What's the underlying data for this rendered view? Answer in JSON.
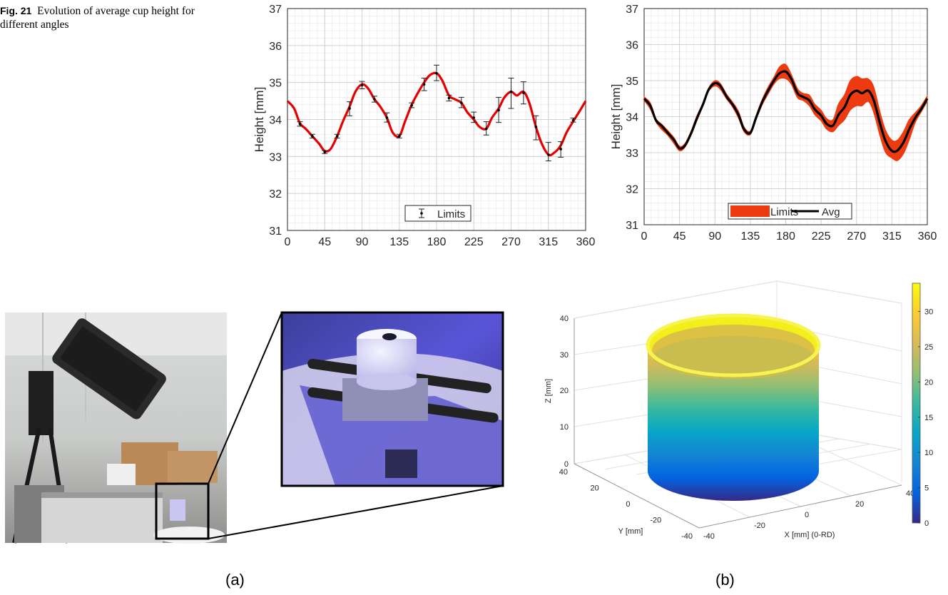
{
  "caption": {
    "fig_label": "Fig. 21",
    "text": "Evolution of average cup height for different angles"
  },
  "subfigure_labels": [
    "(a)",
    "(b)"
  ],
  "chart_data": [
    {
      "type": "line",
      "ylabel": "Height [mm]",
      "xlim": [
        0,
        360
      ],
      "ylim": [
        31,
        37
      ],
      "xticks": [
        0,
        45,
        90,
        135,
        180,
        225,
        270,
        315,
        360
      ],
      "yticks": [
        31,
        32,
        33,
        34,
        35,
        36,
        37
      ],
      "grid": true,
      "legend": {
        "position": "bottom-center",
        "entries": [
          "Limits"
        ]
      },
      "series": [
        {
          "name": "Limits",
          "color": "#e60000",
          "x": [
            0,
            8,
            15,
            22,
            30,
            38,
            45,
            52,
            60,
            67,
            75,
            82,
            90,
            97,
            105,
            112,
            120,
            127,
            135,
            142,
            150,
            157,
            165,
            172,
            180,
            187,
            195,
            202,
            210,
            217,
            225,
            232,
            240,
            247,
            255,
            262,
            270,
            277,
            285,
            292,
            300,
            307,
            315,
            322,
            330,
            337,
            345,
            352,
            360
          ],
          "y": [
            34.5,
            34.3,
            33.9,
            33.75,
            33.55,
            33.35,
            33.15,
            33.2,
            33.55,
            33.95,
            34.35,
            34.75,
            34.95,
            34.85,
            34.55,
            34.35,
            34.05,
            33.65,
            33.55,
            33.95,
            34.4,
            34.7,
            35.0,
            35.2,
            35.25,
            35.05,
            34.65,
            34.55,
            34.45,
            34.2,
            34.0,
            33.8,
            33.75,
            34.05,
            34.3,
            34.6,
            34.75,
            34.65,
            34.75,
            34.45,
            33.8,
            33.35,
            33.05,
            33.1,
            33.3,
            33.65,
            33.95,
            34.2,
            34.5
          ],
          "errorbars": [
            {
              "x": 15,
              "y": 33.88,
              "lo": 33.82,
              "hi": 33.94
            },
            {
              "x": 30,
              "y": 33.55,
              "lo": 33.5,
              "hi": 33.6
            },
            {
              "x": 45,
              "y": 33.12,
              "lo": 33.08,
              "hi": 33.16
            },
            {
              "x": 60,
              "y": 33.55,
              "lo": 33.5,
              "hi": 33.6
            },
            {
              "x": 75,
              "y": 34.3,
              "lo": 34.1,
              "hi": 34.48
            },
            {
              "x": 90,
              "y": 34.93,
              "lo": 34.83,
              "hi": 35.03
            },
            {
              "x": 105,
              "y": 34.55,
              "lo": 34.47,
              "hi": 34.63
            },
            {
              "x": 120,
              "y": 34.05,
              "lo": 33.93,
              "hi": 34.18
            },
            {
              "x": 135,
              "y": 33.55,
              "lo": 33.5,
              "hi": 33.6
            },
            {
              "x": 150,
              "y": 34.38,
              "lo": 34.32,
              "hi": 34.45
            },
            {
              "x": 165,
              "y": 34.95,
              "lo": 34.78,
              "hi": 35.12
            },
            {
              "x": 180,
              "y": 35.25,
              "lo": 35.05,
              "hi": 35.47
            },
            {
              "x": 195,
              "y": 34.58,
              "lo": 34.5,
              "hi": 34.66
            },
            {
              "x": 210,
              "y": 34.45,
              "lo": 34.32,
              "hi": 34.6
            },
            {
              "x": 225,
              "y": 34.05,
              "lo": 33.92,
              "hi": 34.2
            },
            {
              "x": 240,
              "y": 33.75,
              "lo": 33.58,
              "hi": 33.94
            },
            {
              "x": 255,
              "y": 34.25,
              "lo": 33.92,
              "hi": 34.6
            },
            {
              "x": 270,
              "y": 34.75,
              "lo": 34.3,
              "hi": 35.12
            },
            {
              "x": 285,
              "y": 34.72,
              "lo": 34.42,
              "hi": 35.02
            },
            {
              "x": 300,
              "y": 33.8,
              "lo": 33.45,
              "hi": 34.1
            },
            {
              "x": 315,
              "y": 33.05,
              "lo": 32.88,
              "hi": 33.38
            },
            {
              "x": 330,
              "y": 33.2,
              "lo": 32.98,
              "hi": 33.4
            },
            {
              "x": 345,
              "y": 33.98,
              "lo": 33.93,
              "hi": 34.04
            }
          ]
        }
      ]
    },
    {
      "type": "area",
      "ylabel": "Height [mm]",
      "xlim": [
        0,
        360
      ],
      "ylim": [
        31,
        37
      ],
      "xticks": [
        0,
        45,
        90,
        135,
        180,
        225,
        270,
        315,
        360
      ],
      "yticks": [
        31,
        32,
        33,
        34,
        35,
        36,
        37
      ],
      "grid": true,
      "legend": {
        "position": "bottom-center",
        "entries": [
          "Limits",
          "Avg"
        ]
      },
      "x": [
        0,
        8,
        15,
        22,
        30,
        38,
        45,
        52,
        60,
        67,
        75,
        82,
        90,
        97,
        105,
        112,
        120,
        127,
        135,
        142,
        150,
        157,
        165,
        172,
        180,
        187,
        195,
        202,
        210,
        217,
        225,
        232,
        240,
        247,
        255,
        262,
        270,
        277,
        285,
        292,
        300,
        307,
        315,
        322,
        330,
        337,
        345,
        352,
        360
      ],
      "series": [
        {
          "name": "Limits",
          "color": "#ee3a10",
          "lower": [
            34.45,
            34.2,
            33.85,
            33.65,
            33.48,
            33.25,
            33.05,
            33.15,
            33.5,
            33.88,
            34.3,
            34.7,
            34.85,
            34.75,
            34.48,
            34.28,
            33.95,
            33.58,
            33.5,
            33.9,
            34.32,
            34.6,
            34.9,
            35.05,
            35.05,
            34.9,
            34.52,
            34.45,
            34.3,
            34.05,
            33.88,
            33.65,
            33.58,
            33.75,
            33.92,
            34.18,
            34.3,
            34.3,
            34.42,
            34.1,
            33.45,
            33.0,
            32.85,
            32.78,
            32.98,
            33.35,
            33.85,
            34.12,
            34.42
          ],
          "upper": [
            34.55,
            34.38,
            33.95,
            33.8,
            33.62,
            33.42,
            33.18,
            33.26,
            33.62,
            34.02,
            34.4,
            34.8,
            35.0,
            34.92,
            34.62,
            34.42,
            34.15,
            33.72,
            33.6,
            34.02,
            34.48,
            34.8,
            35.1,
            35.38,
            35.45,
            35.18,
            34.78,
            34.65,
            34.6,
            34.35,
            34.18,
            33.95,
            33.92,
            34.35,
            34.62,
            35.0,
            35.12,
            35.05,
            35.05,
            34.82,
            34.12,
            33.62,
            33.35,
            33.35,
            33.6,
            33.92,
            34.12,
            34.3,
            34.58
          ]
        },
        {
          "name": "Avg",
          "color": "#000000",
          "values": [
            34.5,
            34.3,
            33.9,
            33.75,
            33.55,
            33.35,
            33.12,
            33.2,
            33.55,
            33.95,
            34.35,
            34.75,
            34.93,
            34.85,
            34.55,
            34.35,
            34.05,
            33.65,
            33.55,
            33.95,
            34.4,
            34.7,
            35.0,
            35.2,
            35.25,
            35.05,
            34.65,
            34.55,
            34.45,
            34.2,
            34.03,
            33.8,
            33.75,
            34.05,
            34.27,
            34.6,
            34.72,
            34.65,
            34.72,
            34.45,
            33.8,
            33.32,
            33.05,
            33.06,
            33.3,
            33.65,
            33.98,
            34.2,
            34.5
          ]
        }
      ]
    },
    {
      "type": "surface3d",
      "xlabel": "X [mm] (0-RD)",
      "ylabel": "Y [mm]",
      "zlabel": "Z [mm]",
      "xticks": [
        -40,
        -20,
        0,
        20,
        40
      ],
      "yticks": [
        -40,
        -20,
        0,
        20,
        40
      ],
      "zticks": [
        0,
        10,
        20,
        30,
        40
      ],
      "colorbar": {
        "ticks": [
          0,
          5,
          10,
          15,
          20,
          25,
          30
        ],
        "colormap": "parula",
        "range": [
          0,
          34
        ]
      },
      "grid": true
    }
  ],
  "photos": {
    "left_photo": "3d-scanner-setup-photo",
    "zoom_photo": "cup-specimen-blue-light-photo"
  }
}
